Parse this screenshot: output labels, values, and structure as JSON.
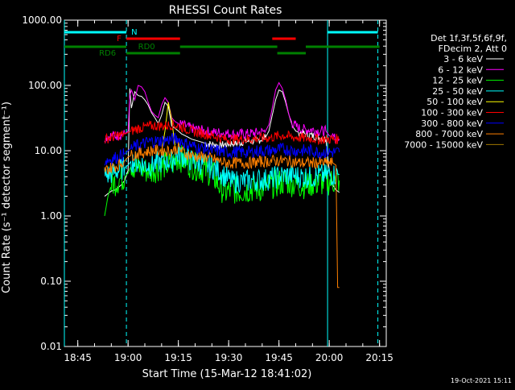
{
  "chart_data": {
    "type": "line",
    "title": "RHESSI Count Rates",
    "xlabel": "Start Time (15-Mar-12 18:41:02)",
    "ylabel": "Count Rate (s⁻¹ detector segment⁻¹)",
    "ylog": true,
    "ylim": [
      0.01,
      1000
    ],
    "xlim_minutes": [
      0,
      96
    ],
    "yticks": [
      {
        "value": 0.01,
        "label": "0.01"
      },
      {
        "value": 0.1,
        "label": "0.10"
      },
      {
        "value": 1,
        "label": "1.00"
      },
      {
        "value": 10,
        "label": "10.00"
      },
      {
        "value": 100,
        "label": "100.00"
      },
      {
        "value": 1000,
        "label": "1000.00"
      }
    ],
    "xticks": [
      {
        "minute": 4,
        "label": "18:45"
      },
      {
        "minute": 19,
        "label": "19:00"
      },
      {
        "minute": 34,
        "label": "19:15"
      },
      {
        "minute": 49,
        "label": "19:30"
      },
      {
        "minute": 64,
        "label": "19:45"
      },
      {
        "minute": 79,
        "label": "20:00"
      },
      {
        "minute": 94,
        "label": "20:15"
      }
    ],
    "legend_header": [
      "Det 1f,3f,5f,6f,9f,",
      "FDecim 2, Att 0"
    ],
    "series": [
      {
        "name": "3 - 6 keV",
        "color": "#ffffff",
        "x": [
          12,
          13,
          14,
          15,
          16,
          17,
          18,
          19,
          19.5,
          20,
          21,
          22,
          23,
          24,
          25,
          26,
          27,
          28,
          29,
          30,
          31,
          32,
          33,
          34,
          35,
          36,
          37,
          38,
          39,
          40,
          41,
          42,
          44,
          46,
          48,
          50,
          52,
          54,
          56,
          58,
          60,
          61,
          62,
          63,
          64,
          65,
          66,
          67,
          68,
          69,
          70,
          72,
          74,
          76,
          78,
          79,
          80,
          81,
          82
        ],
        "y": [
          2,
          2.2,
          2.4,
          2.5,
          2.7,
          3,
          3.5,
          5,
          90,
          45,
          80,
          70,
          68,
          60,
          50,
          38,
          32,
          26,
          35,
          55,
          48,
          24,
          22,
          20,
          18,
          17,
          16,
          15,
          14.5,
          14,
          13.5,
          13,
          12.5,
          12,
          12.5,
          13,
          13,
          14,
          14,
          14.5,
          16,
          20,
          35,
          60,
          85,
          80,
          55,
          35,
          24,
          20,
          19,
          18,
          17,
          16,
          15,
          5,
          3,
          2.5,
          2.3
        ]
      },
      {
        "name": "6 - 12 keV",
        "color": "#ff00ff",
        "x": [
          12,
          14,
          16,
          18,
          19,
          19.5,
          20,
          21,
          22,
          23,
          24,
          25,
          26,
          27,
          28,
          29,
          30,
          31,
          32,
          33,
          34,
          36,
          38,
          40,
          42,
          44,
          46,
          48,
          50,
          52,
          54,
          56,
          58,
          60,
          61,
          62,
          63,
          64,
          65,
          66,
          67,
          68,
          70,
          72,
          74,
          76,
          78,
          79,
          80,
          82
        ],
        "y": [
          16,
          17,
          17,
          18,
          20,
          70,
          85,
          60,
          100,
          95,
          80,
          55,
          40,
          35,
          32,
          50,
          65,
          55,
          32,
          28,
          26,
          24,
          22,
          21,
          20,
          19,
          19,
          18.5,
          18,
          18,
          18,
          18.5,
          19,
          20,
          25,
          45,
          85,
          110,
          90,
          60,
          35,
          26,
          22,
          21,
          21,
          20,
          20,
          17,
          16,
          15
        ]
      },
      {
        "name": "12 - 25 keV",
        "color": "#00ff00",
        "x": [
          12,
          13,
          14,
          16,
          18,
          19,
          20,
          22,
          24,
          26,
          28,
          30,
          32,
          34,
          36,
          38,
          40,
          42,
          44,
          46,
          48,
          50,
          52,
          54,
          56,
          58,
          60,
          62,
          64,
          66,
          68,
          70,
          72,
          74,
          76,
          78,
          80,
          82
        ],
        "y": [
          1,
          2,
          3,
          3.5,
          4,
          4.5,
          6,
          5.5,
          5,
          5,
          5.5,
          6,
          6,
          8,
          7,
          6,
          5.5,
          5,
          4.5,
          3,
          2.3,
          2.5,
          2.4,
          2.5,
          2.6,
          2.6,
          2.8,
          3,
          3.2,
          3.4,
          3.2,
          3,
          3,
          3.2,
          3.2,
          3.3,
          3.4,
          3.5
        ]
      },
      {
        "name": "25 - 50 keV",
        "color": "#00ffff",
        "x": [
          12,
          14,
          16,
          18,
          19,
          20,
          22,
          24,
          26,
          28,
          30,
          32,
          34,
          36,
          38,
          40,
          42,
          44,
          46,
          48,
          50,
          52,
          54,
          56,
          58,
          60,
          62,
          64,
          66,
          68,
          70,
          72,
          74,
          76,
          78,
          80,
          82
        ],
        "y": [
          4,
          4.5,
          5,
          5.5,
          6,
          7,
          6.5,
          6,
          6,
          6.5,
          7,
          7,
          9,
          8,
          7,
          6.5,
          6,
          5.5,
          5,
          4,
          3.3,
          3.4,
          3.4,
          3.5,
          3.6,
          3.6,
          3.8,
          4,
          4.2,
          4.2,
          4,
          4,
          4,
          4.2,
          4.2,
          4.3,
          4.3
        ]
      },
      {
        "name": "50 - 100 keV",
        "color": "#ffff00",
        "x": [
          29,
          30,
          31,
          32,
          33
        ],
        "y": [
          10,
          20,
          55,
          30,
          12
        ]
      },
      {
        "name": "100 - 300 keV",
        "color": "#ff0000",
        "x": [
          12,
          14,
          16,
          18,
          19,
          20,
          22,
          24,
          26,
          28,
          30,
          32,
          34,
          36,
          38,
          40,
          42,
          44,
          46,
          48,
          50,
          52,
          54,
          56,
          58,
          60,
          62,
          64,
          66,
          68,
          70,
          72,
          74,
          76,
          78,
          80,
          82
        ],
        "y": [
          15,
          16,
          17,
          18,
          19,
          20,
          22,
          23,
          24,
          24,
          24,
          25,
          24,
          22,
          20,
          19,
          18,
          17,
          16,
          15,
          15,
          15,
          15,
          15,
          15.5,
          15.5,
          16,
          17,
          17,
          16,
          16,
          15.5,
          15.5,
          15,
          15,
          15,
          15
        ]
      },
      {
        "name": "300 - 800 keV",
        "color": "#0000ff",
        "x": [
          12,
          14,
          16,
          18,
          19,
          20,
          22,
          24,
          26,
          28,
          30,
          32,
          34,
          36,
          38,
          40,
          42,
          44,
          46,
          48,
          50,
          52,
          54,
          56,
          58,
          60,
          62,
          64,
          66,
          68,
          70,
          72,
          74,
          76,
          78,
          80,
          82
        ],
        "y": [
          7,
          7.5,
          8,
          9,
          10,
          11,
          12,
          13,
          14,
          14,
          14.5,
          15,
          15,
          13,
          12,
          11,
          11,
          10,
          10,
          9.5,
          9.5,
          9.5,
          9.5,
          9.5,
          10,
          10,
          10,
          10.5,
          10.5,
          10,
          10,
          10,
          10,
          9.5,
          9.5,
          9.5,
          9.5
        ]
      },
      {
        "name": "800 - 7000 keV",
        "color": "#ff8000",
        "x": [
          12,
          14,
          16,
          18,
          19,
          20,
          22,
          24,
          26,
          28,
          30,
          32,
          34,
          36,
          38,
          40,
          42,
          44,
          46,
          48,
          50,
          52,
          54,
          56,
          58,
          60,
          62,
          64,
          66,
          68,
          70,
          72,
          74,
          76,
          78,
          80,
          81,
          81.5,
          82
        ],
        "y": [
          5,
          5.5,
          6,
          7,
          8,
          8.5,
          9,
          9.5,
          10,
          10,
          10,
          10,
          11,
          9,
          8.5,
          8,
          8,
          7.5,
          7,
          6.5,
          6.5,
          6.5,
          6.5,
          6.5,
          6.8,
          6.8,
          7,
          7,
          7,
          6.8,
          6.5,
          6.5,
          6.5,
          6.5,
          6.5,
          6.5,
          6,
          0.08,
          0.08
        ]
      },
      {
        "name": "7000 - 15000 keV",
        "color": "#a07800",
        "x": [],
        "y": []
      }
    ],
    "vlines": [
      {
        "minute": 0,
        "color": "#00ffff",
        "style": "solid"
      },
      {
        "minute": 18.5,
        "color": "#00ffff",
        "style": "dashed"
      },
      {
        "minute": 78.5,
        "color": "#00ffff",
        "style": "solid"
      },
      {
        "minute": 93.5,
        "color": "#00ffff",
        "style": "dashed"
      }
    ],
    "flags": [
      {
        "label": "N",
        "color": "#00ffff",
        "row": 0,
        "segments": [
          [
            0,
            18.5
          ],
          [
            78.5,
            93.5
          ]
        ]
      },
      {
        "label": "F",
        "color": "#ff0000",
        "row": 1,
        "segments": [
          [
            18.5,
            34.5
          ],
          [
            62,
            69
          ]
        ]
      },
      {
        "label": "RD0",
        "color": "#008000",
        "row": 2,
        "segments": [
          [
            0,
            18.5
          ],
          [
            34.5,
            63.5
          ],
          [
            72,
            94
          ]
        ]
      },
      {
        "label": "RD6",
        "color": "#008000",
        "row": 3,
        "segments": [
          [
            18.5,
            34.5
          ],
          [
            63.5,
            72
          ]
        ]
      }
    ]
  },
  "footer": {
    "date": "19-Oct-2021 15:11"
  }
}
